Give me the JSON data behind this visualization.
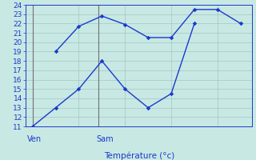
{
  "background_color": "#c8e8e4",
  "grid_color": "#a0c8c4",
  "line_color": "#1a3acc",
  "line1_x": [
    0,
    1,
    2,
    3,
    4,
    5,
    6,
    7
  ],
  "line1_y": [
    11,
    13,
    15,
    18,
    15,
    13,
    14.5,
    22
  ],
  "line2_x": [
    1,
    2,
    3,
    4,
    5,
    6,
    7,
    8,
    9
  ],
  "line2_y": [
    19,
    21.7,
    22.8,
    21.9,
    20.5,
    20.5,
    23.5,
    23.5,
    22
  ],
  "xlim": [
    -0.3,
    9.5
  ],
  "ylim": [
    11,
    24
  ],
  "yticks": [
    11,
    12,
    13,
    14,
    15,
    16,
    17,
    18,
    19,
    20,
    21,
    22,
    23,
    24
  ],
  "ven_line_x": 0.0,
  "sam_line_x": 2.85,
  "ven_label": "Ven",
  "sam_label": "Sam",
  "xlabel": "Température (°c)",
  "axis_label_fontsize": 7,
  "tick_fontsize": 6.5
}
